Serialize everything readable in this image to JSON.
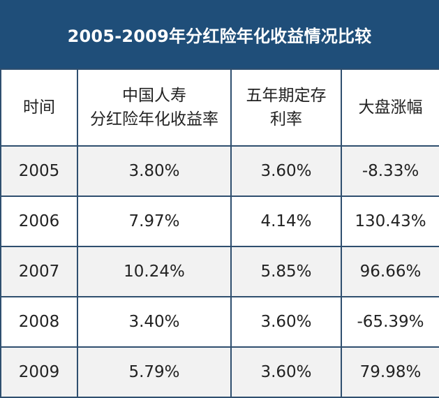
{
  "chart_data": {
    "type": "table",
    "title": "2005-2009年分红险年化收益情况比较",
    "columns": [
      {
        "line1": "时间",
        "line2": ""
      },
      {
        "line1": "中国人寿",
        "line2": "分红险年化收益率"
      },
      {
        "line1": "五年期定存",
        "line2": "利率"
      },
      {
        "line1": "大盘涨幅",
        "line2": ""
      }
    ],
    "rows": [
      [
        "2005",
        "3.80%",
        "3.60%",
        "-8.33%"
      ],
      [
        "2006",
        "7.97%",
        "4.14%",
        "130.43%"
      ],
      [
        "2007",
        "10.24%",
        "5.85%",
        "96.66%"
      ],
      [
        "2008",
        "3.40%",
        "3.60%",
        "-65.39%"
      ],
      [
        "2009",
        "5.79%",
        "3.60%",
        "79.98%"
      ]
    ]
  },
  "colors": {
    "header_background": "#1f4e79",
    "header_text": "#ffffff",
    "border": "#2f4f6f",
    "row_alt": "#f2f2f2"
  }
}
